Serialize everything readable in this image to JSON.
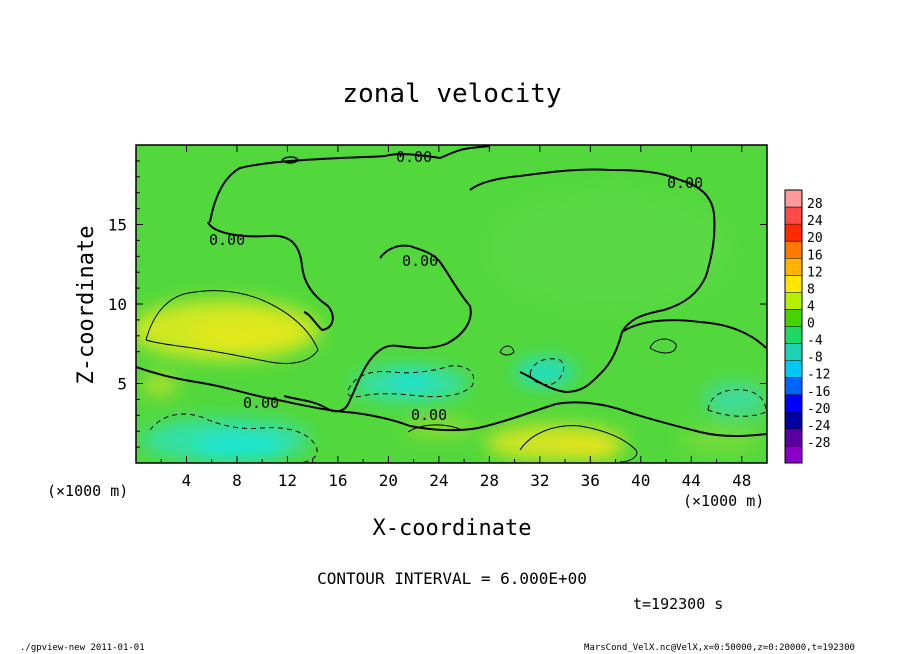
{
  "chart_data": {
    "type": "heatmap",
    "title": "zonal velocity",
    "xlabel": "X-coordinate",
    "ylabel": "Z-coordinate",
    "x_unit": "(×1000 m)",
    "y_unit": "(×1000 m)",
    "xlim": [
      0,
      50
    ],
    "ylim": [
      0,
      20
    ],
    "x_ticks": [
      4,
      8,
      12,
      16,
      20,
      24,
      28,
      32,
      36,
      40,
      44,
      48
    ],
    "y_ticks": [
      5,
      10,
      15
    ],
    "colorbar": {
      "labels": [
        28,
        24,
        20,
        16,
        12,
        8,
        4,
        0,
        -4,
        -8,
        -12,
        -16,
        -20,
        -24,
        -28
      ],
      "colors": [
        "#ff9a9a",
        "#ff4a4a",
        "#ff2a00",
        "#ff7a00",
        "#ffb400",
        "#ffe600",
        "#b4f000",
        "#46d200",
        "#1ed864",
        "#1ed2b4",
        "#00c8f0",
        "#0064ff",
        "#0000ff",
        "#0000a0",
        "#5a00a0",
        "#8a00c8"
      ]
    },
    "contour_labels": [
      {
        "text": "0.00",
        "x": 21.2,
        "z": 19.4
      },
      {
        "text": "0.00",
        "x": 43.3,
        "z": 17.6
      },
      {
        "text": "0.00",
        "x": 7.2,
        "z": 14.2
      },
      {
        "text": "0.00",
        "x": 22.3,
        "z": 12.6
      },
      {
        "text": "0.00",
        "x": 10.1,
        "z": 3.8
      },
      {
        "text": "0.00",
        "x": 23.2,
        "z": 2.9
      }
    ],
    "contour_interval": "CONTOUR INTERVAL = 6.000E+00",
    "time_label": "t=192300 s"
  },
  "footer": {
    "left": "./gpview-new  2011-01-01",
    "right": "MarsCond_VelX.nc@VelX,x=0:50000,z=0:20000,t=192300"
  }
}
